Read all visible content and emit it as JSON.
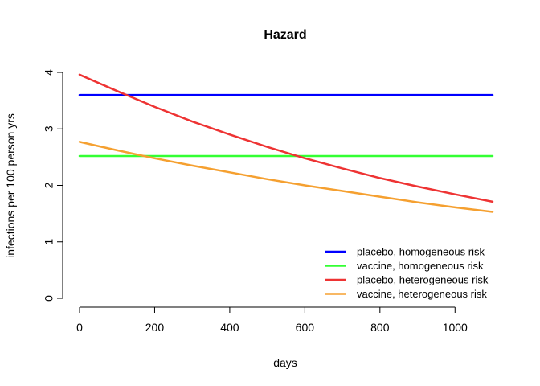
{
  "chart_data": {
    "type": "line",
    "title": "Hazard",
    "xlabel": "days",
    "ylabel": "infections per 100 person yrs",
    "xlim": [
      0,
      1100
    ],
    "ylim": [
      0,
      4
    ],
    "x_ticks": [
      0,
      200,
      400,
      600,
      800,
      1000
    ],
    "y_ticks": [
      0,
      1,
      2,
      3,
      4
    ],
    "x_tick_labels": [
      "0",
      "200",
      "400",
      "600",
      "800",
      "1000"
    ],
    "y_tick_labels": [
      "0",
      "1",
      "2",
      "3",
      "4"
    ],
    "grid": false,
    "legend_position": "bottom-right",
    "x": [
      0,
      100,
      200,
      300,
      400,
      500,
      600,
      700,
      800,
      900,
      1000,
      1100
    ],
    "series": [
      {
        "name": "placebo, homogeneous risk",
        "color": "#0000ff",
        "values": [
          3.6,
          3.6,
          3.6,
          3.6,
          3.6,
          3.6,
          3.6,
          3.6,
          3.6,
          3.6,
          3.6,
          3.6
        ]
      },
      {
        "name": "vaccine, homogeneous risk",
        "color": "#33ff33",
        "values": [
          2.52,
          2.52,
          2.52,
          2.52,
          2.52,
          2.52,
          2.52,
          2.52,
          2.52,
          2.52,
          2.52,
          2.52
        ]
      },
      {
        "name": "placebo, heterogeneous risk",
        "color": "#ee3333",
        "values": [
          3.96,
          3.67,
          3.39,
          3.13,
          2.9,
          2.68,
          2.48,
          2.3,
          2.13,
          1.98,
          1.84,
          1.71
        ]
      },
      {
        "name": "vaccine, heterogeneous risk",
        "color": "#f5a030",
        "values": [
          2.77,
          2.62,
          2.48,
          2.35,
          2.23,
          2.11,
          2.0,
          1.9,
          1.8,
          1.7,
          1.61,
          1.53
        ]
      }
    ]
  }
}
